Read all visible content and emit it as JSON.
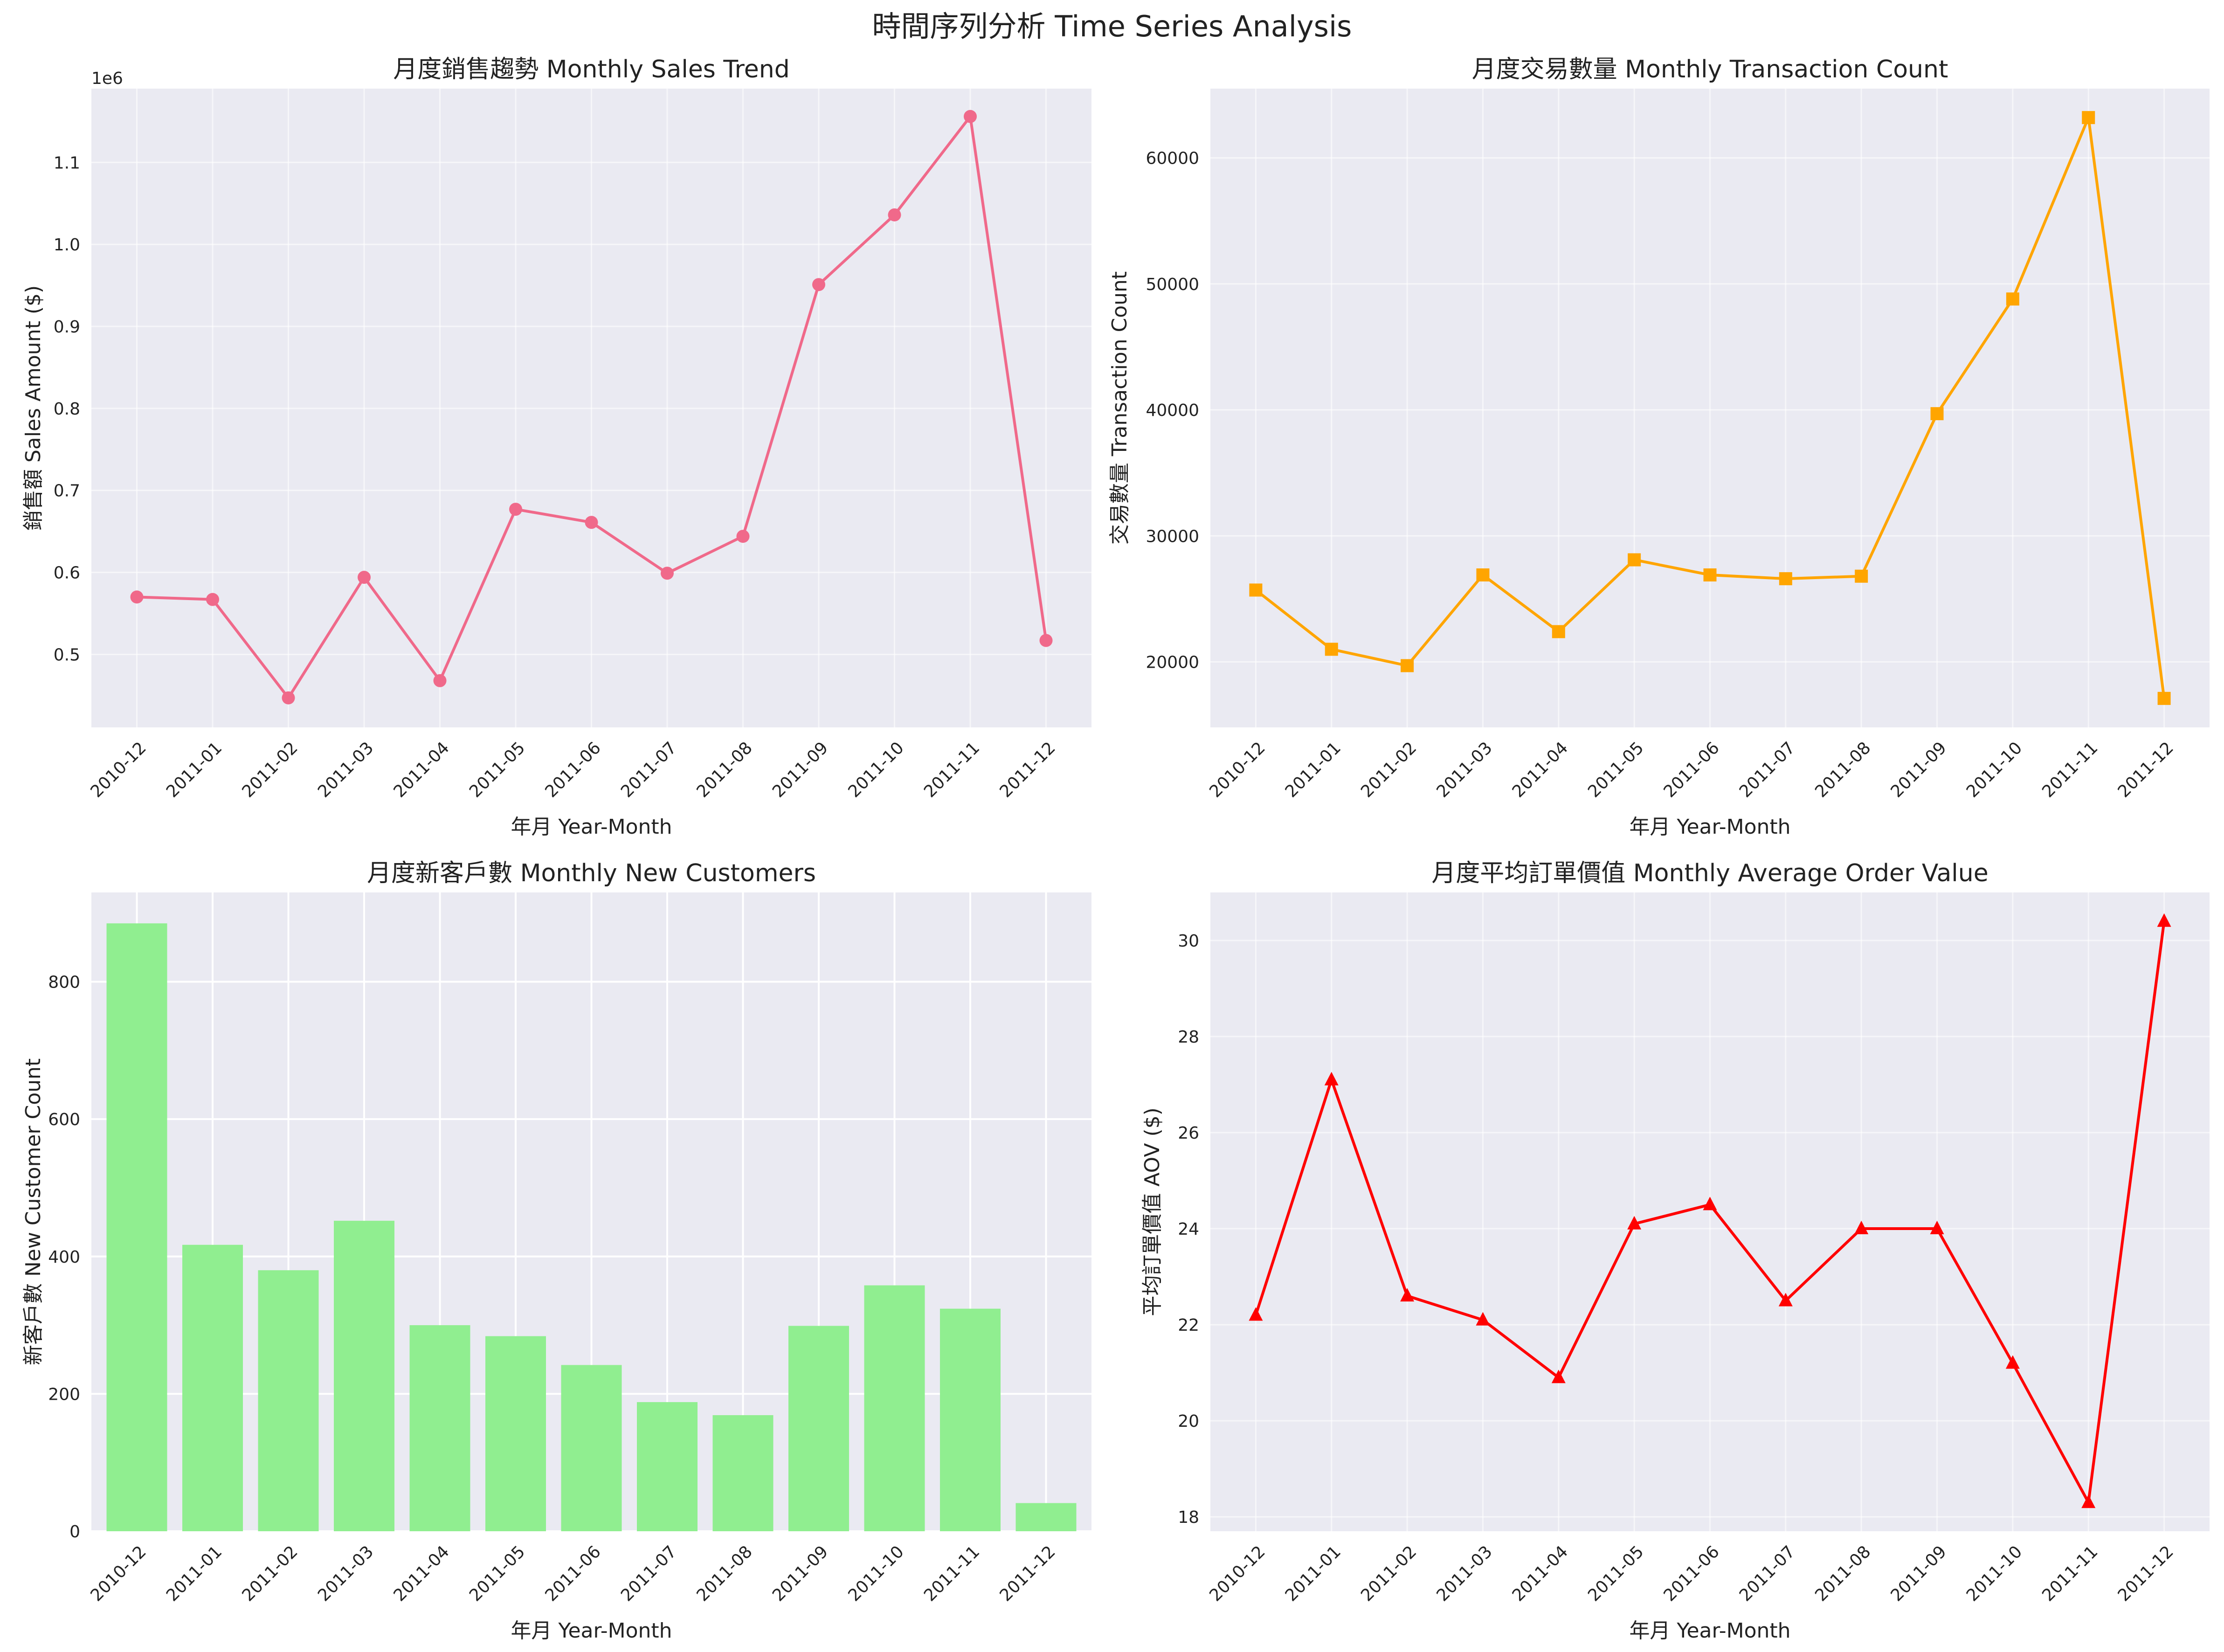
{
  "figure": {
    "suptitle": "時間序列分析 Time Series Analysis"
  },
  "style": {
    "plot_bg": "#EAEAF2",
    "grid": "#FFFFFF",
    "text": "#222222"
  },
  "chart_data": [
    {
      "type": "line",
      "title": "月度銷售趨勢 Monthly Sales Trend",
      "xlabel": "年月 Year-Month",
      "ylabel": "銷售額 Sales Amount ($)",
      "offset_text": "1e6",
      "categories": [
        "2010-12",
        "2011-01",
        "2011-02",
        "2011-03",
        "2011-04",
        "2011-05",
        "2011-06",
        "2011-07",
        "2011-08",
        "2011-09",
        "2011-10",
        "2011-11",
        "2011-12"
      ],
      "values": [
        0.57,
        0.567,
        0.447,
        0.594,
        0.468,
        0.677,
        0.661,
        0.599,
        0.644,
        0.951,
        1.036,
        1.156,
        0.517
      ],
      "ylim": [
        0.411,
        1.19
      ],
      "yticks": [
        0.5,
        0.6,
        0.7,
        0.8,
        0.9,
        1.0,
        1.1
      ],
      "ytick_labels": [
        "0.5",
        "0.6",
        "0.7",
        "0.8",
        "0.9",
        "1.0",
        "1.1"
      ],
      "color": "#F0698A",
      "marker": "circle",
      "grid": true
    },
    {
      "type": "line",
      "title": "月度交易數量 Monthly Transaction Count",
      "xlabel": "年月 Year-Month",
      "ylabel": "交易數量 Transaction Count",
      "categories": [
        "2010-12",
        "2011-01",
        "2011-02",
        "2011-03",
        "2011-04",
        "2011-05",
        "2011-06",
        "2011-07",
        "2011-08",
        "2011-09",
        "2011-10",
        "2011-11",
        "2011-12"
      ],
      "values": [
        25700,
        21000,
        19700,
        26900,
        22400,
        28100,
        26900,
        26600,
        26800,
        39700,
        48800,
        63200,
        17100
      ],
      "ylim": [
        14800,
        65500
      ],
      "yticks": [
        20000,
        30000,
        40000,
        50000,
        60000
      ],
      "ytick_labels": [
        "20000",
        "30000",
        "40000",
        "50000",
        "60000"
      ],
      "color": "#FFA500",
      "marker": "square",
      "grid": true
    },
    {
      "type": "bar",
      "title": "月度新客戶數 Monthly New Customers",
      "xlabel": "年月 Year-Month",
      "ylabel": "新客戶數 New Customer Count",
      "categories": [
        "2010-12",
        "2011-01",
        "2011-02",
        "2011-03",
        "2011-04",
        "2011-05",
        "2011-06",
        "2011-07",
        "2011-08",
        "2011-09",
        "2011-10",
        "2011-11",
        "2011-12"
      ],
      "values": [
        885,
        417,
        380,
        452,
        300,
        284,
        242,
        188,
        169,
        299,
        358,
        324,
        41
      ],
      "ylim": [
        0,
        930
      ],
      "yticks": [
        0,
        200,
        400,
        600,
        800
      ],
      "ytick_labels": [
        "0",
        "200",
        "400",
        "600",
        "800"
      ],
      "color": "#90EE90",
      "grid": true
    },
    {
      "type": "line",
      "title": "月度平均訂單價值 Monthly Average Order Value",
      "xlabel": "年月 Year-Month",
      "ylabel": "平均訂單價值 AOV ($)",
      "categories": [
        "2010-12",
        "2011-01",
        "2011-02",
        "2011-03",
        "2011-04",
        "2011-05",
        "2011-06",
        "2011-07",
        "2011-08",
        "2011-09",
        "2011-10",
        "2011-11",
        "2011-12"
      ],
      "values": [
        22.2,
        27.1,
        22.6,
        22.1,
        20.9,
        24.1,
        24.5,
        22.5,
        24.0,
        24.0,
        21.2,
        18.3,
        30.4
      ],
      "ylim": [
        17.7,
        31.0
      ],
      "yticks": [
        18,
        20,
        22,
        24,
        26,
        28,
        30
      ],
      "ytick_labels": [
        "18",
        "20",
        "22",
        "24",
        "26",
        "28",
        "30"
      ],
      "color": "#FF0000",
      "marker": "triangle",
      "grid": true
    }
  ]
}
